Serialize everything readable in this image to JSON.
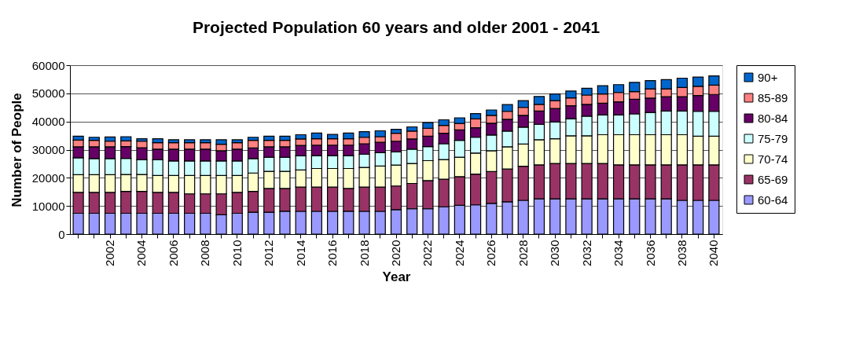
{
  "chart_data": {
    "type": "bar",
    "title": "Projected Population 60 years and older 2001 - 2041",
    "xlabel": "Year",
    "ylabel": "Number of People",
    "stacked": true,
    "ylim": [
      0,
      60000
    ],
    "yticks": [
      0,
      10000,
      20000,
      30000,
      40000,
      50000,
      60000
    ],
    "grid": "y",
    "legend": "right",
    "categories": [
      null,
      null,
      "2002",
      null,
      "2004",
      null,
      "2006",
      null,
      "2008",
      null,
      "2010",
      null,
      "2012",
      null,
      "2014",
      null,
      "2016",
      null,
      "2018",
      null,
      "2020",
      null,
      "2022",
      null,
      "2024",
      null,
      "2026",
      null,
      "2028",
      null,
      "2030",
      null,
      "2032",
      null,
      "2034",
      null,
      "2036",
      null,
      "2038",
      null,
      "2040"
    ],
    "series": [
      {
        "name": "60-64",
        "color": "#9999ff",
        "values": [
          7400,
          7400,
          7400,
          7400,
          7400,
          7400,
          7400,
          7400,
          7400,
          6900,
          7400,
          7800,
          7800,
          8100,
          8100,
          8100,
          8100,
          8100,
          8100,
          8100,
          8700,
          9000,
          9000,
          9700,
          10200,
          10400,
          10900,
          11500,
          12000,
          12500,
          12500,
          12500,
          12500,
          12500,
          12500,
          12500,
          12500,
          12500,
          12000,
          12000,
          12000
        ]
      },
      {
        "name": "65-69",
        "color": "#993366",
        "values": [
          7400,
          7400,
          7400,
          7800,
          7800,
          7400,
          7400,
          6900,
          6900,
          7400,
          7400,
          7400,
          8400,
          8100,
          8600,
          8600,
          8600,
          8100,
          8600,
          8600,
          8400,
          9000,
          10000,
          9800,
          10200,
          10900,
          11300,
          11600,
          12100,
          12100,
          12600,
          12600,
          12600,
          12600,
          12100,
          12100,
          12100,
          12100,
          12600,
          12600,
          12600
        ]
      },
      {
        "name": "70-74",
        "color": "#ffffcc",
        "values": [
          6300,
          6300,
          6300,
          6000,
          6000,
          6000,
          6000,
          6500,
          6500,
          6500,
          6000,
          6500,
          6100,
          6100,
          6100,
          6600,
          6600,
          7100,
          7000,
          7500,
          7400,
          7100,
          7100,
          7000,
          6900,
          7500,
          7400,
          7900,
          7900,
          8900,
          8800,
          9800,
          9800,
          10200,
          10700,
          10700,
          10700,
          10700,
          10700,
          10200,
          10200
        ]
      },
      {
        "name": "75-79",
        "color": "#ccffff",
        "values": [
          6000,
          5700,
          5700,
          5700,
          5200,
          5600,
          5200,
          5200,
          5200,
          5200,
          5200,
          5100,
          5000,
          5000,
          5000,
          4600,
          4600,
          4600,
          4700,
          4700,
          4700,
          5100,
          5000,
          5600,
          6000,
          5600,
          5600,
          5600,
          6000,
          5500,
          6000,
          6100,
          7000,
          7000,
          7000,
          7400,
          7900,
          8400,
          8400,
          8800,
          8800
        ]
      },
      {
        "name": "80-84",
        "color": "#660066",
        "values": [
          3900,
          4200,
          4200,
          4200,
          4300,
          3800,
          4200,
          4200,
          4200,
          3600,
          4200,
          3800,
          3700,
          3700,
          3700,
          3700,
          3700,
          3700,
          3700,
          3700,
          3800,
          3600,
          3700,
          3700,
          3700,
          3400,
          4200,
          4200,
          4200,
          4700,
          4700,
          4600,
          4200,
          4200,
          4700,
          5200,
          5100,
          5100,
          5100,
          5600,
          6000
        ]
      },
      {
        "name": "85-89",
        "color": "#ff8080",
        "values": [
          2400,
          2300,
          2000,
          2000,
          2300,
          2300,
          2300,
          2300,
          2300,
          2300,
          2300,
          2700,
          2300,
          2300,
          2300,
          2300,
          2300,
          2300,
          2300,
          2000,
          2800,
          2800,
          2800,
          2800,
          2300,
          3100,
          2800,
          2800,
          2800,
          2400,
          2800,
          2800,
          3300,
          3300,
          3300,
          2700,
          3300,
          2800,
          3300,
          3300,
          3300
        ]
      },
      {
        "name": "90+",
        "color": "#0066cc",
        "values": [
          1400,
          1100,
          1500,
          1500,
          900,
          1400,
          1000,
          1000,
          1000,
          1600,
          1000,
          1100,
          1500,
          1500,
          1500,
          2000,
          1500,
          2000,
          2000,
          2100,
          1400,
          1500,
          2000,
          2000,
          2000,
          1900,
          1900,
          2400,
          2400,
          2800,
          2400,
          2400,
          2400,
          2900,
          2800,
          3300,
          2900,
          3300,
          3300,
          3300,
          3300
        ]
      }
    ]
  }
}
